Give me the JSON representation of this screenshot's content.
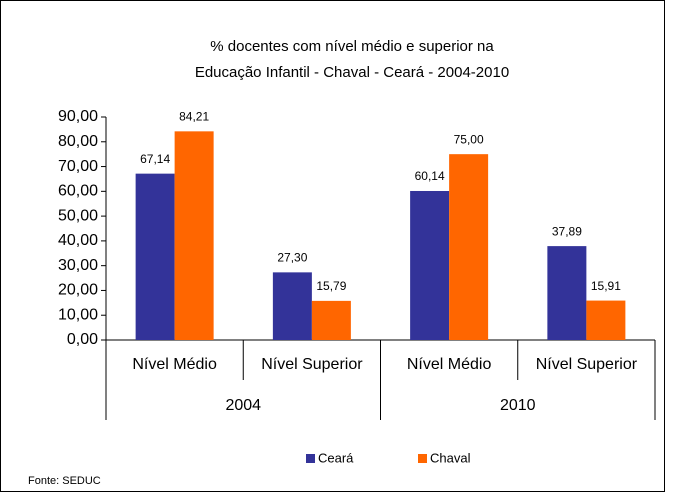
{
  "chart_data": {
    "type": "bar",
    "title": [
      "% docentes com nível médio e superior na",
      "Educação Infantil - Chaval  -  Ceará - 2004-2010"
    ],
    "categories": [
      "Nível Médio",
      "Nível Superior",
      "Nível Médio",
      "Nível Superior"
    ],
    "groups": [
      "2004",
      "2010"
    ],
    "series": [
      {
        "name": "Ceará",
        "color": "#333399",
        "values": [
          67.14,
          27.3,
          60.14,
          37.89
        ],
        "value_labels": [
          "67,14",
          "27,30",
          "60,14",
          "37,89"
        ]
      },
      {
        "name": "Chaval",
        "color": "#ff6600",
        "values": [
          84.21,
          15.79,
          75.0,
          15.91
        ],
        "value_labels": [
          "84,21",
          "15,79",
          "75,00",
          "15,91"
        ]
      }
    ],
    "ylim": [
      0,
      90
    ],
    "yticks": [
      {
        "value": 0,
        "label": "0,00"
      },
      {
        "value": 10,
        "label": "10,00"
      },
      {
        "value": 20,
        "label": "20,00"
      },
      {
        "value": 30,
        "label": "30,00"
      },
      {
        "value": 40,
        "label": "40,00"
      },
      {
        "value": 50,
        "label": "50,00"
      },
      {
        "value": 60,
        "label": "60,00"
      },
      {
        "value": 70,
        "label": "70,00"
      },
      {
        "value": 80,
        "label": "80,00"
      },
      {
        "value": 90,
        "label": "90,00"
      }
    ],
    "legend": "bottom",
    "source": "Fonte: SEDUC"
  }
}
